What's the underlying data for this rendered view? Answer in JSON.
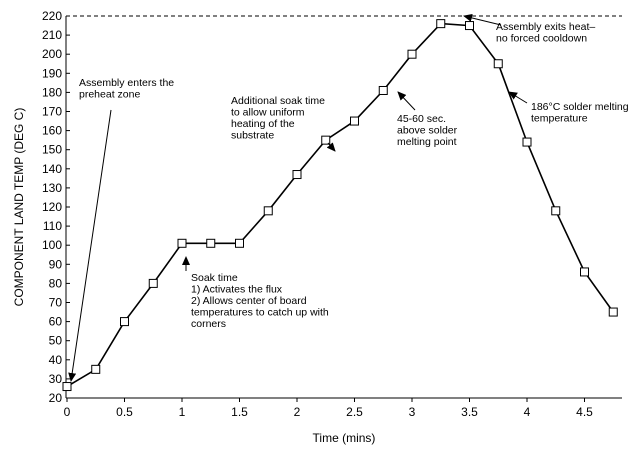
{
  "chart_data": {
    "type": "line",
    "title": "",
    "xlabel": "Time (mins)",
    "ylabel": "COMPONENT LAND TEMP (DEG C)",
    "xlim": [
      0,
      4.75
    ],
    "ylim": [
      20,
      220
    ],
    "xticks": [
      0,
      0.5,
      1,
      1.5,
      2,
      2.5,
      3,
      3.5,
      4,
      4.5
    ],
    "xtick_labels": [
      "0",
      "0.5",
      "1",
      "1.5",
      "2",
      "2.5",
      "3",
      "3.5",
      "4",
      "4.5"
    ],
    "yticks": [
      20,
      30,
      40,
      50,
      60,
      70,
      80,
      90,
      100,
      110,
      120,
      130,
      140,
      150,
      160,
      170,
      180,
      190,
      200,
      210,
      220
    ],
    "ytick_labels": [
      "20",
      "30",
      "40",
      "50",
      "60",
      "70",
      "80",
      "90",
      "100",
      "110",
      "120",
      "130",
      "140",
      "150",
      "160",
      "170",
      "180",
      "190",
      "200",
      "210",
      "220"
    ],
    "grid": false,
    "legend": "none",
    "marker": "square",
    "series": [
      {
        "x": [
          0,
          0.25,
          0.5,
          0.75,
          1,
          1.25,
          1.5,
          1.75,
          2,
          2.25,
          2.5,
          2.75,
          3,
          3.25,
          3.5,
          3.75,
          4,
          4.25,
          4.5,
          4.75
        ],
        "y": [
          26,
          35,
          60,
          80,
          101,
          101,
          101,
          118,
          137,
          155,
          165,
          181,
          200,
          216,
          215,
          195,
          154,
          118,
          86,
          65
        ]
      }
    ],
    "reference_line": {
      "y": 220,
      "style": "dashed"
    },
    "annotations": [
      {
        "key": "enters",
        "lines": [
          "Assembly enters the",
          "preheat zone"
        ]
      },
      {
        "key": "soak",
        "lines": [
          "Soak time",
          "1) Activates the flux",
          "2) Allows center of board",
          "temperatures to catch up with",
          "corners"
        ]
      },
      {
        "key": "additional",
        "lines": [
          "Additional soak time",
          "to allow uniform",
          "heating of the",
          "substrate"
        ]
      },
      {
        "key": "above",
        "lines": [
          "45-60 sec.",
          "above solder",
          "melting point"
        ]
      },
      {
        "key": "exits",
        "lines": [
          "Assembly exits heat–",
          "no forced cooldown"
        ]
      },
      {
        "key": "melting",
        "lines": [
          "186°C solder melting",
          "temperature"
        ]
      }
    ]
  }
}
